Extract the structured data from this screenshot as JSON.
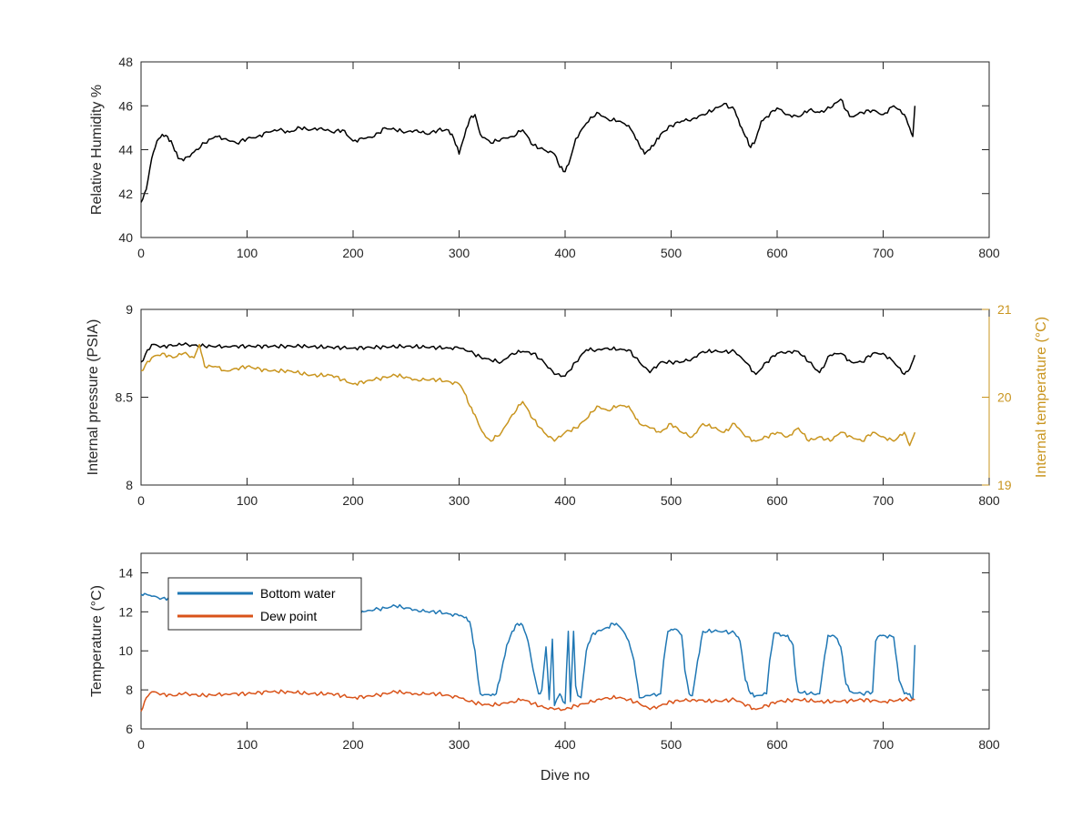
{
  "colors": {
    "black_series": "#000000",
    "internal_temperature": "#C9951F",
    "bottom_water": "#1F77B4",
    "dew_point": "#D95319",
    "axis": "#262626"
  },
  "chart_data": [
    {
      "type": "line",
      "xlabel": "",
      "ylabel": "Relative Humidity %",
      "xlim": [
        0,
        800
      ],
      "ylim": [
        40,
        48
      ],
      "xticks": [
        "0",
        "100",
        "200",
        "300",
        "400",
        "500",
        "600",
        "700",
        "800"
      ],
      "yticks": [
        "40",
        "42",
        "44",
        "46",
        "48"
      ],
      "grid": false,
      "series": [
        {
          "color": "#000000",
          "x": [
            0,
            5,
            10,
            15,
            20,
            25,
            30,
            35,
            40,
            50,
            60,
            70,
            80,
            90,
            100,
            110,
            120,
            130,
            140,
            150,
            160,
            170,
            180,
            190,
            200,
            210,
            220,
            230,
            240,
            250,
            260,
            270,
            280,
            290,
            295,
            300,
            305,
            310,
            315,
            320,
            330,
            340,
            350,
            360,
            370,
            380,
            390,
            395,
            400,
            405,
            410,
            420,
            430,
            440,
            450,
            460,
            465,
            470,
            475,
            480,
            485,
            490,
            500,
            510,
            520,
            530,
            540,
            550,
            560,
            565,
            570,
            575,
            580,
            585,
            590,
            600,
            610,
            620,
            630,
            640,
            650,
            660,
            665,
            670,
            680,
            690,
            700,
            710,
            720,
            725,
            728,
            730
          ],
          "y": [
            41.6,
            42.2,
            43.6,
            44.4,
            44.7,
            44.6,
            44.2,
            43.6,
            43.5,
            43.9,
            44.3,
            44.6,
            44.5,
            44.3,
            44.5,
            44.6,
            44.8,
            44.9,
            44.8,
            45.0,
            44.9,
            45.0,
            44.8,
            44.9,
            44.4,
            44.5,
            44.6,
            45.0,
            44.9,
            44.8,
            44.9,
            44.7,
            44.9,
            44.9,
            44.5,
            43.8,
            44.6,
            45.4,
            45.6,
            44.7,
            44.3,
            44.5,
            44.6,
            44.9,
            44.2,
            44.0,
            43.8,
            43.2,
            43.0,
            43.6,
            44.5,
            45.2,
            45.7,
            45.4,
            45.3,
            45.1,
            44.7,
            44.2,
            43.8,
            44.0,
            44.3,
            44.7,
            45.1,
            45.3,
            45.4,
            45.6,
            45.8,
            46.1,
            45.8,
            45.1,
            44.6,
            44.1,
            44.5,
            45.3,
            45.5,
            45.9,
            45.6,
            45.5,
            45.8,
            45.7,
            45.9,
            46.3,
            45.8,
            45.5,
            45.7,
            45.8,
            45.6,
            46.0,
            45.6,
            45.0,
            44.6,
            46.0
          ]
        }
      ]
    },
    {
      "type": "line",
      "xlabel": "",
      "ylabel": "Internal pressure (PSIA)",
      "ylabel_right": "Internal temperature (°C)",
      "xlim": [
        0,
        800
      ],
      "ylim": [
        8,
        9
      ],
      "ylim_right": [
        19,
        21
      ],
      "xticks": [
        "0",
        "100",
        "200",
        "300",
        "400",
        "500",
        "600",
        "700",
        "800"
      ],
      "yticks": [
        "8",
        "8.5",
        "9"
      ],
      "yticks_right": [
        "19",
        "20",
        "21"
      ],
      "grid": false,
      "series": [
        {
          "axis": "left",
          "color": "#000000",
          "x": [
            0,
            10,
            20,
            40,
            60,
            80,
            100,
            150,
            200,
            250,
            290,
            300,
            310,
            320,
            330,
            340,
            350,
            360,
            370,
            380,
            390,
            400,
            410,
            420,
            430,
            440,
            450,
            460,
            470,
            480,
            490,
            500,
            510,
            520,
            530,
            540,
            550,
            560,
            570,
            580,
            590,
            600,
            610,
            620,
            630,
            640,
            650,
            660,
            670,
            680,
            690,
            700,
            710,
            720,
            725,
            730
          ],
          "y": [
            8.7,
            8.8,
            8.79,
            8.8,
            8.79,
            8.79,
            8.79,
            8.79,
            8.78,
            8.79,
            8.78,
            8.78,
            8.76,
            8.73,
            8.71,
            8.7,
            8.75,
            8.76,
            8.75,
            8.7,
            8.63,
            8.62,
            8.7,
            8.77,
            8.77,
            8.78,
            8.77,
            8.77,
            8.7,
            8.64,
            8.7,
            8.7,
            8.7,
            8.72,
            8.76,
            8.76,
            8.76,
            8.76,
            8.7,
            8.63,
            8.7,
            8.75,
            8.76,
            8.76,
            8.7,
            8.64,
            8.74,
            8.75,
            8.7,
            8.7,
            8.75,
            8.75,
            8.7,
            8.63,
            8.66,
            8.74
          ]
        },
        {
          "axis": "right",
          "color": "#C9951F",
          "x": [
            0,
            10,
            20,
            30,
            40,
            50,
            55,
            60,
            70,
            80,
            100,
            120,
            140,
            160,
            180,
            200,
            220,
            240,
            260,
            280,
            300,
            305,
            310,
            315,
            320,
            325,
            330,
            340,
            350,
            360,
            370,
            380,
            390,
            400,
            410,
            420,
            430,
            440,
            450,
            460,
            465,
            470,
            480,
            490,
            500,
            510,
            520,
            530,
            540,
            550,
            560,
            570,
            580,
            590,
            600,
            610,
            620,
            630,
            640,
            650,
            660,
            670,
            680,
            690,
            700,
            710,
            720,
            725,
            730
          ],
          "y": [
            20.3,
            20.45,
            20.5,
            20.45,
            20.5,
            20.45,
            20.6,
            20.35,
            20.35,
            20.3,
            20.35,
            20.3,
            20.3,
            20.25,
            20.25,
            20.15,
            20.2,
            20.25,
            20.2,
            20.2,
            20.15,
            20.05,
            19.9,
            19.8,
            19.65,
            19.55,
            19.5,
            19.6,
            19.8,
            19.95,
            19.75,
            19.6,
            19.5,
            19.6,
            19.65,
            19.75,
            19.9,
            19.85,
            19.9,
            19.9,
            19.8,
            19.7,
            19.65,
            19.6,
            19.7,
            19.6,
            19.55,
            19.7,
            19.65,
            19.6,
            19.7,
            19.55,
            19.5,
            19.55,
            19.6,
            19.55,
            19.65,
            19.5,
            19.55,
            19.5,
            19.6,
            19.55,
            19.5,
            19.6,
            19.55,
            19.5,
            19.6,
            19.45,
            19.6
          ]
        }
      ]
    },
    {
      "type": "line",
      "xlabel": "Dive no",
      "ylabel": "Temperature (°C)",
      "xlim": [
        0,
        800
      ],
      "ylim": [
        6,
        15
      ],
      "xticks": [
        "0",
        "100",
        "200",
        "300",
        "400",
        "500",
        "600",
        "700",
        "800"
      ],
      "yticks": [
        "6",
        "8",
        "10",
        "12",
        "14"
      ],
      "grid": false,
      "legend": "top-left",
      "series": [
        {
          "name": "Bottom water",
          "color": "#1F77B4",
          "x": [
            0,
            5,
            10,
            20,
            30,
            40,
            100,
            150,
            200,
            205,
            210,
            220,
            230,
            240,
            250,
            260,
            270,
            280,
            290,
            300,
            305,
            310,
            315,
            318,
            320,
            330,
            335,
            340,
            345,
            350,
            355,
            360,
            365,
            370,
            375,
            378,
            382,
            385,
            388,
            390,
            392,
            395,
            398,
            400,
            403,
            405,
            408,
            410,
            412,
            415,
            420,
            425,
            430,
            440,
            445,
            450,
            455,
            460,
            465,
            470,
            480,
            490,
            493,
            497,
            500,
            505,
            510,
            513,
            517,
            520,
            525,
            530,
            540,
            550,
            560,
            565,
            570,
            575,
            580,
            590,
            593,
            597,
            600,
            605,
            610,
            615,
            618,
            620,
            630,
            640,
            645,
            648,
            652,
            655,
            660,
            665,
            670,
            680,
            690,
            693,
            697,
            700,
            710,
            715,
            720,
            725,
            728,
            730
          ],
          "y": [
            12.9,
            12.9,
            12.8,
            12.7,
            12.7,
            11.3,
            11.3,
            11.3,
            11.3,
            11.8,
            12.0,
            12.1,
            12.2,
            12.3,
            12.2,
            12.1,
            12.0,
            12.0,
            11.9,
            11.8,
            11.7,
            11.5,
            10.0,
            8.5,
            7.8,
            7.7,
            7.8,
            9.0,
            10.3,
            11.0,
            11.4,
            11.3,
            10.5,
            9.0,
            7.8,
            8.0,
            10.2,
            7.5,
            10.6,
            7.2,
            7.5,
            7.8,
            7.4,
            7.3,
            11.0,
            7.4,
            11.0,
            8.2,
            7.7,
            7.6,
            10.0,
            10.8,
            11.0,
            11.2,
            11.4,
            11.3,
            11.0,
            10.5,
            9.5,
            7.6,
            7.7,
            7.8,
            9.5,
            11.0,
            11.1,
            11.1,
            10.8,
            9.0,
            7.8,
            7.7,
            9.5,
            11.0,
            11.0,
            11.0,
            10.9,
            10.5,
            8.5,
            7.8,
            7.7,
            7.8,
            9.5,
            10.9,
            10.9,
            10.8,
            10.8,
            10.3,
            8.5,
            7.9,
            7.8,
            7.8,
            9.8,
            10.8,
            10.8,
            10.7,
            10.2,
            8.3,
            7.9,
            7.8,
            7.9,
            10.5,
            10.8,
            10.8,
            10.7,
            8.5,
            7.8,
            7.8,
            7.5,
            10.3
          ]
        },
        {
          "name": "Dew point",
          "color": "#D95319",
          "x": [
            0,
            5,
            10,
            20,
            30,
            40,
            60,
            80,
            100,
            120,
            140,
            160,
            180,
            200,
            220,
            240,
            260,
            280,
            300,
            310,
            320,
            330,
            340,
            350,
            360,
            370,
            380,
            390,
            400,
            410,
            420,
            430,
            440,
            450,
            460,
            470,
            480,
            490,
            500,
            520,
            540,
            560,
            580,
            600,
            620,
            640,
            660,
            680,
            700,
            720,
            730
          ],
          "y": [
            6.9,
            7.6,
            7.9,
            7.8,
            7.7,
            7.8,
            7.7,
            7.8,
            7.8,
            7.9,
            7.9,
            7.8,
            7.8,
            7.6,
            7.7,
            7.9,
            7.8,
            7.8,
            7.6,
            7.4,
            7.3,
            7.2,
            7.3,
            7.4,
            7.5,
            7.3,
            7.1,
            7.0,
            7.0,
            7.2,
            7.3,
            7.5,
            7.6,
            7.6,
            7.5,
            7.3,
            7.0,
            7.2,
            7.4,
            7.5,
            7.4,
            7.5,
            7.0,
            7.4,
            7.5,
            7.4,
            7.4,
            7.5,
            7.4,
            7.5,
            7.5
          ]
        }
      ]
    }
  ]
}
